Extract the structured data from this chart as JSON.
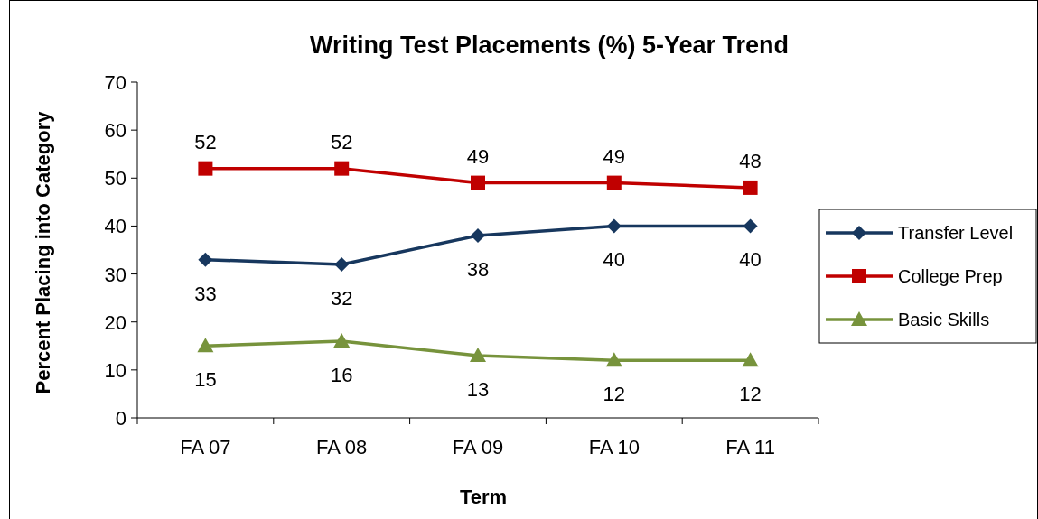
{
  "chart_data": {
    "type": "line",
    "title": "Writing Test Placements (%) 5-Year Trend",
    "xlabel": "Term",
    "ylabel": "Percent Placing into Category",
    "categories": [
      "FA 07",
      "FA 08",
      "FA 09",
      "FA 10",
      "FA 11"
    ],
    "series": [
      {
        "name": "Transfer Level",
        "color": "#17375e",
        "marker": "diamond",
        "values": [
          33,
          32,
          38,
          40,
          40
        ]
      },
      {
        "name": "College Prep",
        "color": "#c00000",
        "marker": "square",
        "values": [
          52,
          52,
          49,
          49,
          48
        ]
      },
      {
        "name": "Basic Skills",
        "color": "#77933c",
        "marker": "triangle",
        "values": [
          15,
          16,
          13,
          12,
          12
        ]
      }
    ],
    "ylim": [
      0,
      70
    ],
    "yticks": [
      0,
      10,
      20,
      30,
      40,
      50,
      60,
      70
    ],
    "grid": false,
    "legend": "right",
    "data_labels": true
  }
}
